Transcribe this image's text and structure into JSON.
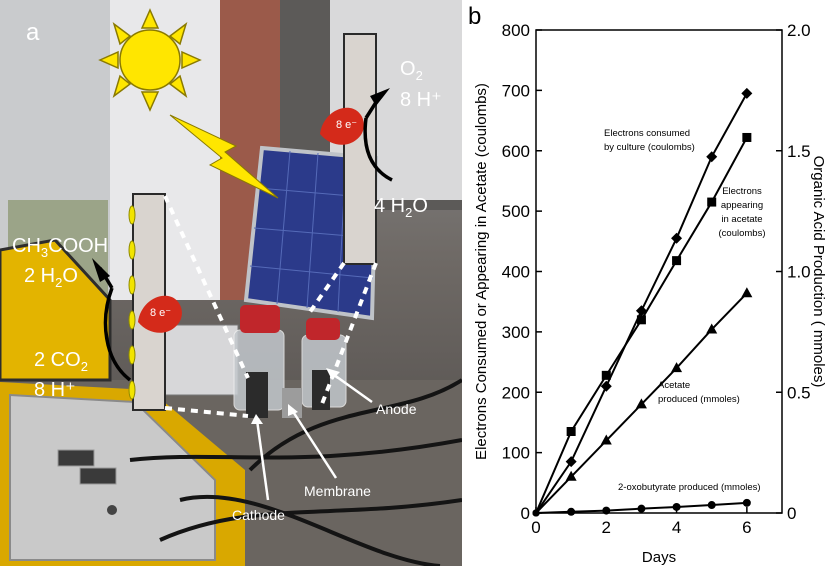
{
  "panel_a": {
    "letter": "a",
    "electron_label": "8 e⁻",
    "anode_products": {
      "o2": "O",
      "o2_sub": "2",
      "h_plus": "8 H⁺"
    },
    "anode_reactant": {
      "text": "4 H",
      "sub": "2",
      "tail": "O"
    },
    "cathode_products": {
      "line1_a": "CH",
      "line1_sub": "3",
      "line1_b": "COOH",
      "line2_a": "2 H",
      "line2_sub": "2",
      "line2_b": "O"
    },
    "cathode_reactants": {
      "line1_a": "2 CO",
      "line1_sub": "2",
      "line2": "8 H⁺"
    },
    "callouts": {
      "anode": "Anode",
      "membrane": "Membrane",
      "cathode": "Cathode"
    },
    "colors": {
      "sun": "#ffe600",
      "sun_outline": "#8a7a00",
      "electron": "#d42a1a",
      "solar_panel": "#2b3a8a"
    }
  },
  "panel_b": {
    "letter": "b",
    "annotations": {
      "consumed": [
        "Electrons consumed",
        "by culture (coulombs)"
      ],
      "appearing": [
        "Electrons",
        "appearing",
        "in acetate",
        "(coulombs)"
      ],
      "acetate": [
        "Acetate",
        "produced (mmoles)"
      ],
      "oxobutyrate": [
        "2-oxobutyrate produced (mmoles)"
      ]
    }
  },
  "chart_data": {
    "type": "line",
    "xlabel": "Days",
    "ylabel": "Electrons Consumed or Appearing in Acetate (coulombs)",
    "ylabel_right": "Organic Acid Production ( mmoles)",
    "xlim": [
      0,
      7
    ],
    "ylim": [
      0,
      800
    ],
    "ylim_right": [
      0,
      2.0
    ],
    "x_ticks": [
      "0",
      "2",
      "4",
      "6"
    ],
    "y_ticks": [
      "0",
      "100",
      "200",
      "300",
      "400",
      "500",
      "600",
      "700",
      "800"
    ],
    "y_ticks_right": [
      "0",
      "0.5",
      "1.0",
      "1.5",
      "2.0"
    ],
    "grid": false,
    "series": [
      {
        "name": "Electrons consumed by culture (coulombs)",
        "axis": "left",
        "marker": "diamond",
        "x": [
          0,
          1,
          2,
          3,
          4,
          5,
          6
        ],
        "values": [
          0,
          85,
          210,
          335,
          455,
          590,
          695
        ]
      },
      {
        "name": "Electrons appearing in acetate (coulombs)",
        "axis": "left",
        "marker": "square",
        "x": [
          0,
          1,
          2,
          3,
          4,
          5,
          6
        ],
        "values": [
          0,
          135,
          228,
          320,
          418,
          515,
          622
        ]
      },
      {
        "name": "Acetate produced (mmoles)",
        "axis": "right",
        "marker": "triangle",
        "x": [
          0,
          1,
          2,
          3,
          4,
          5,
          6
        ],
        "values": [
          0,
          0.15,
          0.3,
          0.45,
          0.6,
          0.76,
          0.91
        ]
      },
      {
        "name": "2-oxobutyrate produced (mmoles)",
        "axis": "right",
        "marker": "circle",
        "x": [
          0,
          1,
          2,
          3,
          4,
          5,
          6
        ],
        "values": [
          0,
          0.005,
          0.01,
          0.018,
          0.025,
          0.033,
          0.042
        ]
      }
    ]
  }
}
